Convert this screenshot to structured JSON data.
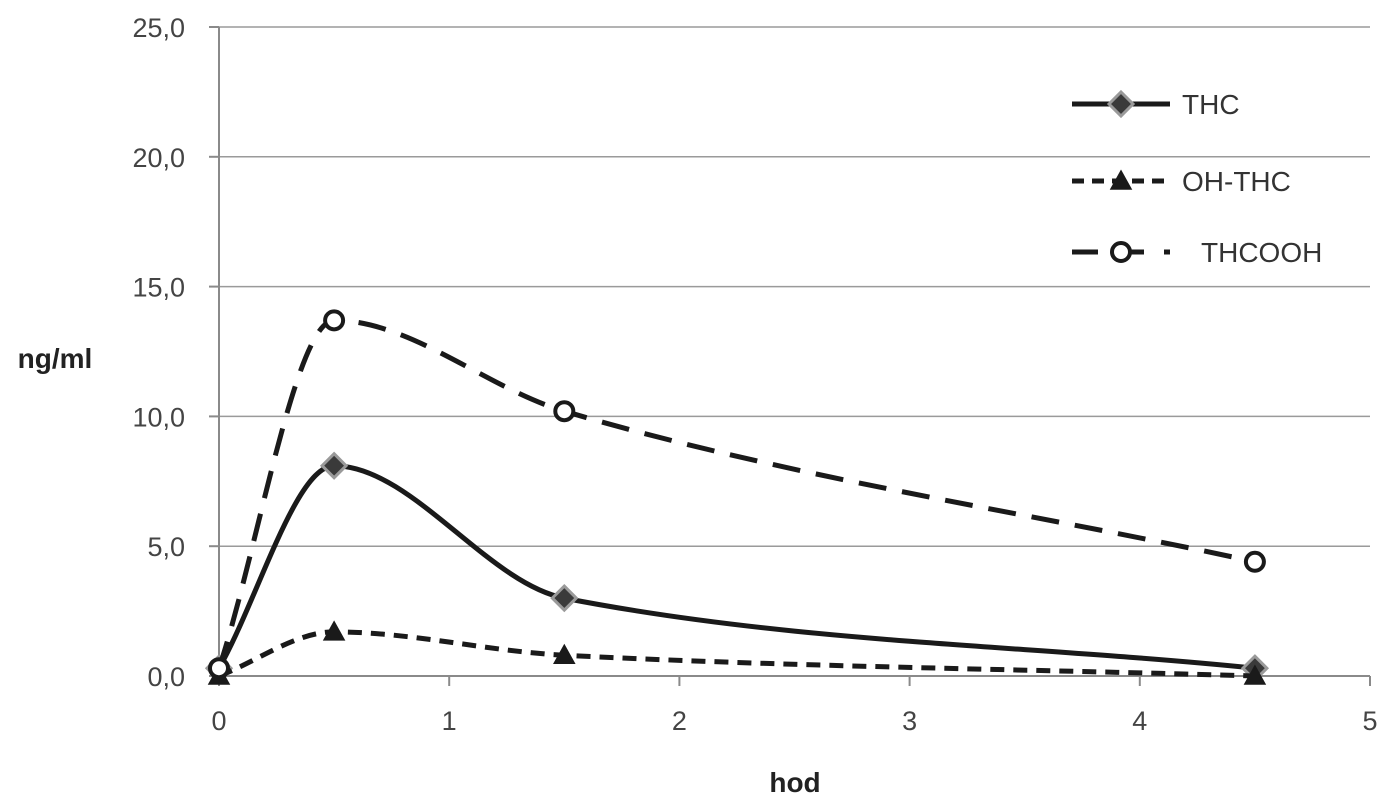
{
  "chart_data": {
    "type": "line",
    "title": "",
    "xlabel": "hod",
    "ylabel": "ng/ml",
    "xlim": [
      0,
      5
    ],
    "ylim": [
      0,
      25
    ],
    "x_ticks": [
      0,
      1,
      2,
      3,
      4,
      5
    ],
    "x_tick_labels": [
      "0",
      "1",
      "2",
      "3",
      "4",
      "5"
    ],
    "y_ticks": [
      0,
      5,
      10,
      15,
      20,
      25
    ],
    "y_tick_labels": [
      "0,0",
      "5,0",
      "10,0",
      "15,0",
      "20,0",
      "25,0"
    ],
    "grid": "horizontal",
    "legend_position": "top-right",
    "smooth": true,
    "series": [
      {
        "name": "THC",
        "line_style": "solid",
        "marker": "diamond",
        "color": "#1a1a1a",
        "marker_fill": "#3a3a3a",
        "marker_stroke": "#9a9a9a",
        "x": [
          0,
          0.5,
          1.5,
          4.5
        ],
        "y": [
          0.3,
          8.1,
          3.0,
          0.3
        ]
      },
      {
        "name": "OH-THC",
        "line_style": "short-dash",
        "marker": "triangle",
        "color": "#1a1a1a",
        "marker_fill": "#1a1a1a",
        "marker_stroke": "#1a1a1a",
        "x": [
          0,
          0.5,
          1.5,
          4.5
        ],
        "y": [
          0.0,
          1.7,
          0.8,
          0.0
        ]
      },
      {
        "name": "THCOOH",
        "line_style": "long-dash",
        "marker": "open-circle",
        "color": "#1a1a1a",
        "marker_fill": "#ffffff",
        "marker_stroke": "#1a1a1a",
        "x": [
          0,
          0.5,
          1.5,
          4.5
        ],
        "y": [
          0.3,
          13.7,
          10.2,
          4.4
        ]
      }
    ]
  }
}
